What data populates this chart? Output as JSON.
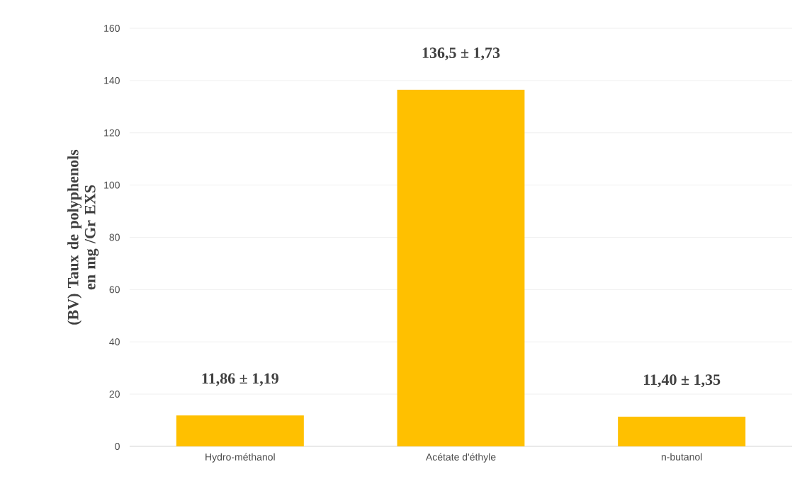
{
  "chart_data": {
    "type": "bar",
    "ylabel": "(BV) Taux de polyphenols en mg /Gr EXS",
    "categories": [
      "Hydro-méthanol",
      "Acétate d'éthyle",
      "n-butanol"
    ],
    "values": [
      11.86,
      136.5,
      11.4
    ],
    "value_labels": [
      "11,86 ± 1,19",
      "136,5 ± 1,73",
      "11,40 ± 1,35"
    ],
    "color": "#ffc000",
    "ylim": [
      0,
      160
    ],
    "yticks": [
      0,
      20,
      40,
      60,
      80,
      100,
      120,
      140,
      160
    ],
    "grid": "y"
  }
}
